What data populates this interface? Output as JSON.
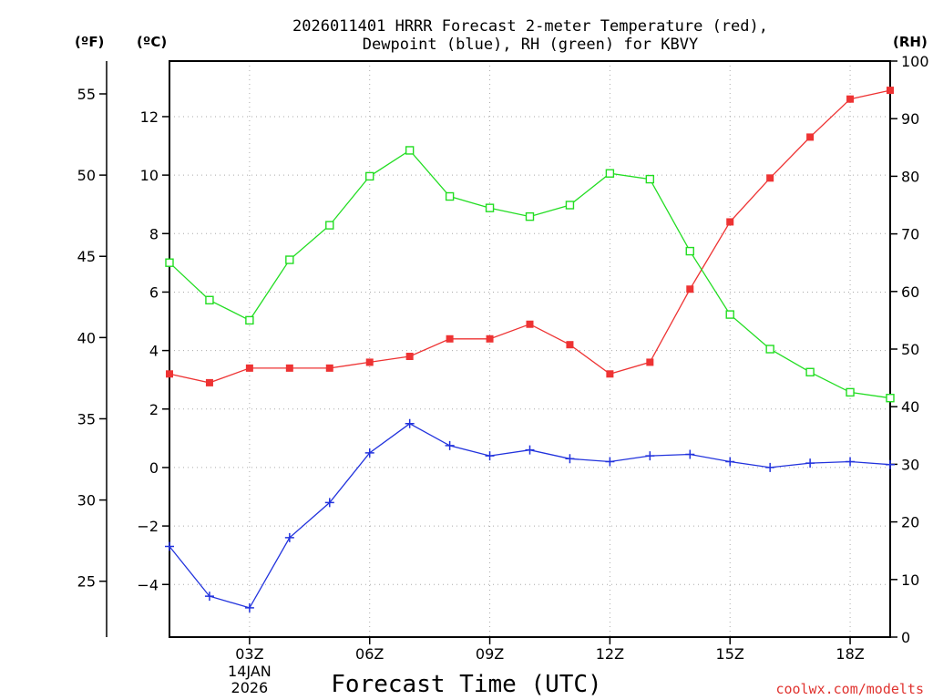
{
  "chart_data": {
    "type": "line",
    "title_line1": "2026011401 HRRR Forecast 2-meter Temperature (red),",
    "title_line2": "Dewpoint (blue), RH (green) for KBVY",
    "xlabel": "Forecast Time (UTC)",
    "credit": "coolwx.com/modelts",
    "units": {
      "fahrenheit": "(ºF)",
      "celsius": "(ºC)",
      "rh": "(RH)"
    },
    "x_hours": [
      1,
      2,
      3,
      4,
      5,
      6,
      7,
      8,
      9,
      10,
      11,
      12,
      13,
      14,
      15,
      16,
      17,
      18,
      19
    ],
    "x_range": [
      1,
      19
    ],
    "x_ticks": [
      {
        "hour": 3,
        "label": "03Z"
      },
      {
        "hour": 6,
        "label": "06Z"
      },
      {
        "hour": 9,
        "label": "09Z"
      },
      {
        "hour": 12,
        "label": "12Z"
      },
      {
        "hour": 15,
        "label": "15Z"
      },
      {
        "hour": 18,
        "label": "18Z"
      }
    ],
    "date_label_line1": "14JAN",
    "date_label_line2": "2026",
    "date_label_hour": 3,
    "celsius_range": [
      -5.8,
      13.9
    ],
    "celsius_ticks": [
      12,
      10,
      8,
      6,
      4,
      2,
      0,
      -2,
      -4
    ],
    "celsius_tick_labels": [
      "12",
      "10",
      "8",
      "6",
      "4",
      "2",
      "0",
      "−2",
      "−4"
    ],
    "fahrenheit_ticks": [
      55,
      50,
      45,
      40,
      35,
      30,
      25
    ],
    "fahrenheit_tick_labels": [
      "55",
      "50",
      "45",
      "40",
      "35",
      "30",
      "25"
    ],
    "rh_range": [
      0,
      100
    ],
    "rh_ticks": [
      100,
      90,
      80,
      70,
      60,
      50,
      40,
      30,
      20,
      10,
      0
    ],
    "rh_tick_labels": [
      "100",
      "90",
      "80",
      "70",
      "60",
      "50",
      "40",
      "30",
      "20",
      "10",
      "0"
    ],
    "grid": true,
    "series": [
      {
        "name": "Temperature",
        "axis": "celsius",
        "color": "#ee3333",
        "marker": "filled-square",
        "values": [
          3.2,
          2.9,
          3.4,
          3.4,
          3.4,
          3.6,
          3.8,
          4.4,
          4.4,
          4.9,
          4.2,
          3.2,
          3.6,
          6.1,
          8.4,
          9.9,
          11.3,
          12.6,
          12.9
        ]
      },
      {
        "name": "Dewpoint",
        "axis": "celsius",
        "color": "#2233dd",
        "marker": "plus",
        "values": [
          -2.7,
          -4.4,
          -4.8,
          -2.4,
          -1.2,
          0.5,
          1.5,
          0.75,
          0.4,
          0.6,
          0.3,
          0.2,
          0.4,
          0.45,
          0.2,
          0.0,
          0.15,
          0.2,
          0.1
        ]
      },
      {
        "name": "RH",
        "axis": "rh",
        "color": "#22dd22",
        "marker": "open-square",
        "values": [
          65,
          58.5,
          55,
          65.5,
          71.5,
          80,
          84.5,
          76.5,
          74.5,
          73,
          75,
          80.5,
          79.5,
          67,
          56,
          50,
          46,
          42.5,
          41.5
        ]
      }
    ]
  }
}
